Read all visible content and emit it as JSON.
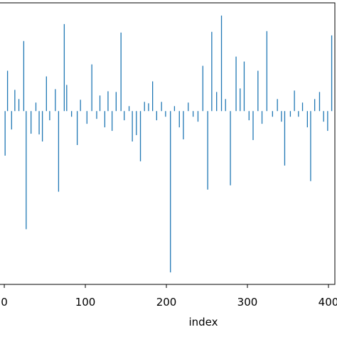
{
  "chart_data": {
    "type": "vlines",
    "xlabel": "index",
    "color": "#1f77b4",
    "x": [
      1,
      4,
      9,
      13,
      18,
      24,
      27,
      33,
      39,
      43,
      47,
      52,
      56,
      63,
      67,
      74,
      77,
      83,
      90,
      94,
      102,
      108,
      114,
      118,
      124,
      128,
      133,
      138,
      144,
      148,
      154,
      158,
      163,
      168,
      173,
      178,
      183,
      188,
      194,
      199,
      205,
      210,
      216,
      221,
      227,
      233,
      239,
      245,
      251,
      256,
      262,
      268,
      273,
      279,
      286,
      291,
      296,
      302,
      307,
      313,
      318,
      324,
      331,
      337,
      342,
      346,
      353,
      358,
      363,
      368,
      374,
      378,
      383,
      389,
      394,
      399,
      404
    ],
    "values": [
      -6.3,
      5.7,
      -2.6,
      3,
      1.7,
      9.9,
      -16.7,
      -3.2,
      1.2,
      -3.3,
      -4.3,
      4.9,
      -1.3,
      3.1,
      -11.4,
      12.3,
      3.7,
      -0.8,
      -4.8,
      1.6,
      -1.8,
      6.6,
      -1.1,
      2.2,
      -2.3,
      2.8,
      -2.8,
      2.7,
      11.1,
      -1.3,
      0.7,
      -4.3,
      -3.4,
      -7.1,
      1.3,
      1.1,
      4.2,
      -1.3,
      1.3,
      -0.8,
      -22.8,
      0.7,
      -2.3,
      -4,
      1.2,
      -0.8,
      -1.5,
      6.4,
      -11.1,
      11.2,
      2.7,
      13.5,
      1.7,
      -10.5,
      7.7,
      3.2,
      7,
      -1.3,
      -4.1,
      5.7,
      -1.8,
      11.3,
      -0.8,
      1.7,
      -1.5,
      -7.7,
      -0.8,
      2.9,
      -0.8,
      1.2,
      -2.3,
      -9.9,
      1.7,
      2.7,
      -1.5,
      -2.8,
      10.7
    ],
    "xlim": [
      -5.3,
      407.9
    ],
    "ylim": [
      -24.5,
      15.3
    ],
    "xticks": [
      0,
      100,
      200,
      300,
      400
    ]
  }
}
